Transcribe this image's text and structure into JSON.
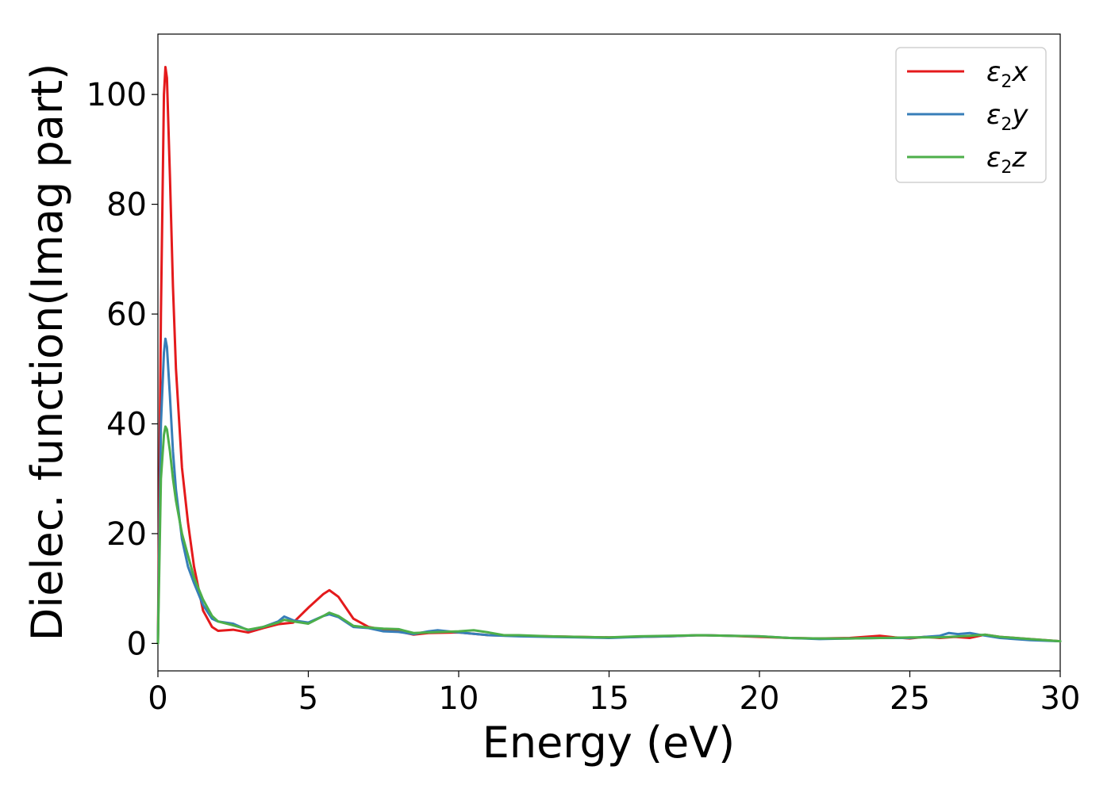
{
  "chart_data": {
    "type": "line",
    "title": "",
    "xlabel": "Energy (eV)",
    "ylabel": "Dielec. function(Imag part)",
    "xlim": [
      0,
      30
    ],
    "ylim": [
      -5,
      111
    ],
    "xticks": [
      0,
      5,
      10,
      15,
      20,
      25,
      30
    ],
    "yticks": [
      0,
      20,
      40,
      60,
      80,
      100
    ],
    "grid": false,
    "legend_position": "top-right",
    "series": [
      {
        "name": "ε2x",
        "legend": {
          "base": "ε",
          "sub": "2",
          "tail": "x"
        },
        "color": "#e41a1c",
        "x": [
          0,
          0.1,
          0.2,
          0.25,
          0.3,
          0.4,
          0.5,
          0.6,
          0.8,
          1.0,
          1.2,
          1.5,
          1.8,
          2.0,
          2.5,
          3.0,
          3.5,
          4.0,
          4.5,
          5.0,
          5.5,
          5.7,
          6.0,
          6.5,
          7.0,
          7.5,
          8.0,
          8.5,
          9.0,
          10.0,
          11.0,
          12.0,
          13.0,
          14.0,
          15.0,
          16.0,
          17.0,
          18.0,
          19.0,
          20.0,
          21.0,
          22.0,
          23.0,
          24.0,
          24.5,
          25.0,
          25.5,
          26.0,
          26.5,
          27.0,
          27.5,
          28.0,
          29.0,
          30.0
        ],
        "y": [
          0,
          60,
          100,
          105,
          103,
          85,
          65,
          50,
          32,
          22,
          14,
          6,
          3,
          2.3,
          2.5,
          2.0,
          2.8,
          3.5,
          3.8,
          6.5,
          9.0,
          9.7,
          8.5,
          4.5,
          3.0,
          2.5,
          2.2,
          1.6,
          1.9,
          2.0,
          1.5,
          1.4,
          1.3,
          1.2,
          1.1,
          1.2,
          1.3,
          1.5,
          1.4,
          1.2,
          1.0,
          0.9,
          1.0,
          1.4,
          1.1,
          0.9,
          1.2,
          1.0,
          1.2,
          1.0,
          1.6,
          1.2,
          0.8,
          0.4
        ]
      },
      {
        "name": "ε2y",
        "legend": {
          "base": "ε",
          "sub": "2",
          "tail": "y"
        },
        "color": "#377eb8",
        "x": [
          0,
          0.1,
          0.2,
          0.25,
          0.3,
          0.4,
          0.5,
          0.6,
          0.8,
          1.0,
          1.2,
          1.5,
          1.8,
          2.0,
          2.5,
          3.0,
          3.5,
          4.0,
          4.2,
          4.5,
          5.0,
          5.5,
          5.7,
          6.0,
          6.5,
          7.0,
          7.5,
          8.0,
          8.5,
          9.0,
          9.3,
          10.0,
          11.0,
          12.0,
          13.0,
          14.0,
          15.0,
          16.0,
          17.0,
          18.0,
          19.0,
          20.0,
          21.0,
          22.0,
          23.0,
          24.0,
          25.0,
          25.5,
          26.0,
          26.3,
          26.6,
          27.0,
          27.3,
          28.0,
          29.0,
          30.0
        ],
        "y": [
          0,
          40,
          53,
          55.5,
          54,
          45,
          35,
          28,
          19,
          14,
          11,
          7,
          4.5,
          4.0,
          3.6,
          2.4,
          3.0,
          4.0,
          4.9,
          4.2,
          3.8,
          5.0,
          5.3,
          4.8,
          3.0,
          2.8,
          2.2,
          2.1,
          1.7,
          2.2,
          2.4,
          2.0,
          1.5,
          1.3,
          1.2,
          1.1,
          1.0,
          1.2,
          1.3,
          1.5,
          1.4,
          1.3,
          1.0,
          0.8,
          0.9,
          1.0,
          1.0,
          1.2,
          1.4,
          1.9,
          1.7,
          1.9,
          1.6,
          1.0,
          0.6,
          0.4
        ]
      },
      {
        "name": "ε2z",
        "legend": {
          "base": "ε",
          "sub": "2",
          "tail": "z"
        },
        "color": "#4daf4a",
        "x": [
          0,
          0.1,
          0.2,
          0.25,
          0.3,
          0.4,
          0.5,
          0.6,
          0.8,
          1.0,
          1.2,
          1.5,
          1.8,
          2.0,
          2.5,
          3.0,
          3.5,
          4.0,
          4.2,
          4.5,
          5.0,
          5.5,
          5.7,
          6.0,
          6.5,
          7.0,
          7.5,
          8.0,
          8.5,
          9.0,
          10.0,
          10.5,
          11.0,
          11.5,
          12.0,
          13.0,
          14.0,
          15.0,
          16.0,
          17.0,
          18.0,
          19.0,
          20.0,
          21.0,
          22.0,
          23.0,
          24.0,
          25.0,
          26.0,
          27.0,
          27.5,
          28.0,
          29.0,
          30.0
        ],
        "y": [
          0,
          30,
          38,
          39.5,
          39,
          35,
          30,
          26,
          20,
          16,
          12,
          8,
          5,
          4.0,
          3.3,
          2.5,
          3.0,
          3.8,
          4.3,
          4.0,
          3.6,
          5.0,
          5.6,
          5.0,
          3.2,
          2.9,
          2.7,
          2.6,
          1.9,
          2.0,
          2.2,
          2.4,
          2.0,
          1.5,
          1.5,
          1.3,
          1.2,
          1.1,
          1.3,
          1.4,
          1.5,
          1.4,
          1.3,
          1.0,
          0.9,
          0.9,
          1.0,
          1.1,
          1.1,
          1.4,
          1.6,
          1.2,
          0.8,
          0.4
        ]
      }
    ]
  }
}
